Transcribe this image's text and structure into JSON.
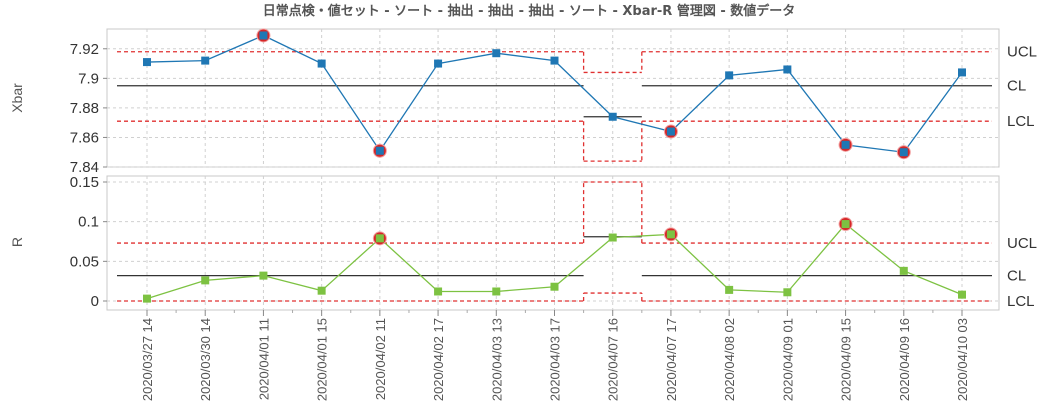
{
  "chart_data": {
    "title": "日常点検・値セット - ソート - 抽出 - 抽出 - 抽出 - ソート - Xbar-R 管理図 - 数値データ",
    "type": "line",
    "categories": [
      "2020/03/27 14",
      "2020/03/30 14",
      "2020/04/01 11",
      "2020/04/01 15",
      "2020/04/02 11",
      "2020/04/02 17",
      "2020/04/03 13",
      "2020/04/03 17",
      "2020/04/07 16",
      "2020/04/07 17",
      "2020/04/08 02",
      "2020/04/09 01",
      "2020/04/09 15",
      "2020/04/09 16",
      "2020/04/10 03"
    ],
    "grid": true,
    "xbar": {
      "ylabel": "Xbar",
      "ylim": [
        7.84,
        7.93
      ],
      "yticks": [
        "7.84",
        "7.86",
        "7.88",
        "7.9",
        "7.92"
      ],
      "line_color": "#1f77b4",
      "values": [
        7.911,
        7.912,
        7.929,
        7.91,
        7.851,
        7.91,
        7.917,
        7.912,
        7.874,
        7.864,
        7.902,
        7.906,
        7.855,
        7.85,
        7.904
      ],
      "out_of_control": [
        2,
        4,
        9,
        12,
        13
      ],
      "segments": [
        {
          "from": 0,
          "to": 7,
          "ucl": 7.918,
          "cl": 7.895,
          "lcl": 7.871
        },
        {
          "from": 8,
          "to": 8,
          "ucl": 7.904,
          "cl": 7.874,
          "lcl": 7.844
        },
        {
          "from": 9,
          "to": 14,
          "ucl": 7.918,
          "cl": 7.895,
          "lcl": 7.871
        }
      ],
      "right_labels": [
        "UCL",
        "CL",
        "LCL"
      ]
    },
    "r": {
      "ylabel": "R",
      "ylim": [
        0,
        0.15
      ],
      "yticks": [
        "0",
        "0.05",
        "0.1",
        "0.15"
      ],
      "line_color": "#7dc242",
      "values": [
        0.003,
        0.026,
        0.032,
        0.013,
        0.079,
        0.012,
        0.012,
        0.018,
        0.08,
        0.084,
        0.014,
        0.011,
        0.097,
        0.038,
        0.008
      ],
      "out_of_control": [
        4,
        9,
        12
      ],
      "segments": [
        {
          "from": 0,
          "to": 7,
          "ucl": 0.073,
          "cl": 0.032,
          "lcl": 0
        },
        {
          "from": 8,
          "to": 8,
          "ucl": 0.15,
          "cl": 0.081,
          "lcl": 0.01
        },
        {
          "from": 9,
          "to": 14,
          "ucl": 0.073,
          "cl": 0.032,
          "lcl": 0
        }
      ],
      "right_labels": [
        "UCL",
        "CL",
        "LCL"
      ]
    },
    "colors": {
      "limit_line": "#e03030",
      "center_line": "#333333",
      "outlier_ring": "#d62728",
      "grid": "#d0d0d0"
    }
  }
}
